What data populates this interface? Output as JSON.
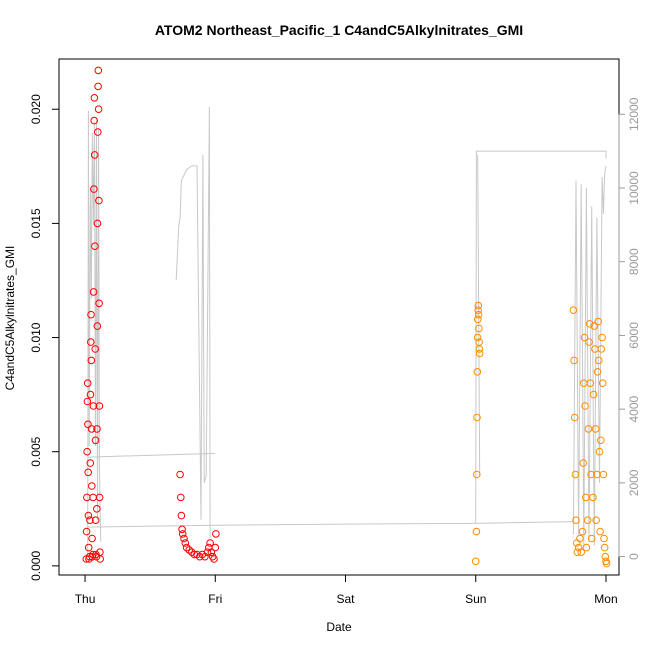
{
  "chart_data": {
    "type": "scatter",
    "title": "ATOM2 Northeast_Pacific_1 C4andC5Alkylnitrates_GMI",
    "xlabel": "Date",
    "ylabel": "C4andC5Alkylnitrates_GMI",
    "x_unit": "days since Thu 00:00 (day tick positions)",
    "xlim": [
      -0.2,
      4.1
    ],
    "ylim": [
      -0.0004,
      0.0222
    ],
    "y2lim": [
      -500,
      13500
    ],
    "x_ticks": [
      {
        "x": 0,
        "label": "Thu"
      },
      {
        "x": 1,
        "label": "Fri"
      },
      {
        "x": 2,
        "label": "Sat"
      },
      {
        "x": 3,
        "label": "Sun"
      },
      {
        "x": 4,
        "label": "Mon"
      }
    ],
    "y_ticks": [
      {
        "v": 0.0,
        "label": "0.000"
      },
      {
        "v": 0.005,
        "label": "0.005"
      },
      {
        "v": 0.01,
        "label": "0.010"
      },
      {
        "v": 0.015,
        "label": "0.015"
      },
      {
        "v": 0.02,
        "label": "0.020"
      }
    ],
    "y2_ticks": [
      {
        "v": 0,
        "label": "0"
      },
      {
        "v": 2000,
        "label": "2000"
      },
      {
        "v": 4000,
        "label": "4000"
      },
      {
        "v": 6000,
        "label": "6000"
      },
      {
        "v": 8000,
        "label": "8000"
      },
      {
        "v": 10000,
        "label": "10000"
      },
      {
        "v": 12000,
        "label": "12000"
      }
    ],
    "colors": {
      "series1": "#ff0000",
      "series2": "#ff8c00",
      "altitude": "#c8c8c8"
    },
    "series": [
      {
        "color": "#ff0000",
        "points": [
          [
            0.01,
            0.0003
          ],
          [
            0.012,
            0.0015
          ],
          [
            0.014,
            0.003
          ],
          [
            0.016,
            0.005
          ],
          [
            0.018,
            0.0072
          ],
          [
            0.02,
            0.008
          ],
          [
            0.022,
            0.0062
          ],
          [
            0.024,
            0.0041
          ],
          [
            0.026,
            0.0022
          ],
          [
            0.028,
            0.0008
          ],
          [
            0.03,
            0.0003
          ],
          [
            0.035,
            0.0004
          ],
          [
            0.037,
            0.002
          ],
          [
            0.04,
            0.0045
          ],
          [
            0.042,
            0.0075
          ],
          [
            0.044,
            0.0098
          ],
          [
            0.046,
            0.011
          ],
          [
            0.048,
            0.009
          ],
          [
            0.05,
            0.006
          ],
          [
            0.052,
            0.0035
          ],
          [
            0.054,
            0.0012
          ],
          [
            0.056,
            0.0004
          ],
          [
            0.06,
            0.0005
          ],
          [
            0.062,
            0.003
          ],
          [
            0.064,
            0.007
          ],
          [
            0.066,
            0.012
          ],
          [
            0.068,
            0.0165
          ],
          [
            0.07,
            0.0195
          ],
          [
            0.072,
            0.0205
          ],
          [
            0.074,
            0.018
          ],
          [
            0.076,
            0.014
          ],
          [
            0.078,
            0.0095
          ],
          [
            0.08,
            0.0055
          ],
          [
            0.082,
            0.002
          ],
          [
            0.084,
            0.0005
          ],
          [
            0.088,
            0.0004
          ],
          [
            0.09,
            0.0025
          ],
          [
            0.092,
            0.006
          ],
          [
            0.094,
            0.0105
          ],
          [
            0.096,
            0.015
          ],
          [
            0.098,
            0.019
          ],
          [
            0.1,
            0.021
          ],
          [
            0.102,
            0.0217
          ],
          [
            0.104,
            0.02
          ],
          [
            0.106,
            0.016
          ],
          [
            0.108,
            0.0115
          ],
          [
            0.11,
            0.007
          ],
          [
            0.112,
            0.003
          ],
          [
            0.114,
            0.0006
          ],
          [
            0.116,
            0.0003
          ],
          [
            0.73,
            0.004
          ],
          [
            0.735,
            0.003
          ],
          [
            0.74,
            0.0022
          ],
          [
            0.745,
            0.0016
          ],
          [
            0.75,
            0.0014
          ],
          [
            0.76,
            0.0012
          ],
          [
            0.77,
            0.001
          ],
          [
            0.78,
            0.0008
          ],
          [
            0.8,
            0.0007
          ],
          [
            0.82,
            0.0006
          ],
          [
            0.84,
            0.0005
          ],
          [
            0.86,
            0.0005
          ],
          [
            0.88,
            0.0004
          ],
          [
            0.9,
            0.0005
          ],
          [
            0.92,
            0.0004
          ],
          [
            0.94,
            0.0006
          ],
          [
            0.95,
            0.0008
          ],
          [
            0.96,
            0.001
          ],
          [
            0.97,
            0.0006
          ],
          [
            0.98,
            0.0004
          ],
          [
            0.99,
            0.0003
          ],
          [
            1.0,
            0.0008
          ],
          [
            1.005,
            0.0014
          ]
        ]
      },
      {
        "color": "#ff8c00",
        "points": [
          [
            3.0,
            0.0002
          ],
          [
            3.005,
            0.0015
          ],
          [
            3.008,
            0.004
          ],
          [
            3.01,
            0.0065
          ],
          [
            3.012,
            0.0085
          ],
          [
            3.014,
            0.01
          ],
          [
            3.016,
            0.0108
          ],
          [
            3.018,
            0.0112
          ],
          [
            3.02,
            0.0114
          ],
          [
            3.022,
            0.011
          ],
          [
            3.024,
            0.0104
          ],
          [
            3.026,
            0.0098
          ],
          [
            3.028,
            0.0095
          ],
          [
            3.03,
            0.0093
          ],
          [
            3.75,
            0.0112
          ],
          [
            3.755,
            0.009
          ],
          [
            3.76,
            0.0065
          ],
          [
            3.765,
            0.004
          ],
          [
            3.77,
            0.002
          ],
          [
            3.775,
            0.001
          ],
          [
            3.78,
            0.0006
          ],
          [
            3.79,
            0.0008
          ],
          [
            3.8,
            0.0012
          ],
          [
            3.81,
            0.0006
          ],
          [
            3.82,
            0.0015
          ],
          [
            3.825,
            0.0045
          ],
          [
            3.83,
            0.008
          ],
          [
            3.835,
            0.01
          ],
          [
            3.84,
            0.007
          ],
          [
            3.845,
            0.003
          ],
          [
            3.85,
            0.0008
          ],
          [
            3.86,
            0.002
          ],
          [
            3.865,
            0.006
          ],
          [
            3.87,
            0.0098
          ],
          [
            3.875,
            0.0106
          ],
          [
            3.88,
            0.008
          ],
          [
            3.885,
            0.004
          ],
          [
            3.89,
            0.0012
          ],
          [
            3.9,
            0.003
          ],
          [
            3.905,
            0.0075
          ],
          [
            3.91,
            0.0105
          ],
          [
            3.915,
            0.0095
          ],
          [
            3.92,
            0.006
          ],
          [
            3.925,
            0.002
          ],
          [
            3.93,
            0.004
          ],
          [
            3.935,
            0.0085
          ],
          [
            3.94,
            0.0107
          ],
          [
            3.945,
            0.009
          ],
          [
            3.95,
            0.005
          ],
          [
            3.955,
            0.0015
          ],
          [
            3.96,
            0.0055
          ],
          [
            3.965,
            0.0095
          ],
          [
            3.97,
            0.01
          ],
          [
            3.975,
            0.008
          ],
          [
            3.98,
            0.004
          ],
          [
            3.985,
            0.0012
          ],
          [
            3.99,
            0.0008
          ],
          [
            3.995,
            0.0004
          ],
          [
            4.0,
            0.0002
          ],
          [
            4.005,
            0.0001
          ]
        ]
      }
    ],
    "altitude_segments": [
      [
        [
          0.02,
          0
        ],
        [
          0.026,
          12100
        ],
        [
          0.032,
          3000
        ],
        [
          0.04,
          10000
        ],
        [
          0.048,
          7000
        ],
        [
          0.056,
          11500
        ],
        [
          0.064,
          9000
        ],
        [
          0.072,
          11800
        ],
        [
          0.08,
          3000
        ],
        [
          0.088,
          11900
        ],
        [
          0.096,
          1000
        ],
        [
          0.104,
          11600
        ],
        [
          0.11,
          2500
        ],
        [
          0.12,
          400
        ]
      ],
      [
        [
          0.7,
          7500
        ],
        [
          0.72,
          9000
        ],
        [
          0.73,
          9200
        ],
        [
          0.74,
          10200
        ],
        [
          0.78,
          10500
        ],
        [
          0.82,
          10600
        ],
        [
          0.86,
          10600
        ],
        [
          0.89,
          1000
        ],
        [
          0.905,
          10900
        ],
        [
          0.915,
          2000
        ],
        [
          0.93,
          2200
        ],
        [
          0.955,
          12200
        ],
        [
          0.96,
          500
        ]
      ],
      [
        [
          0.02,
          2700
        ],
        [
          1.0,
          2800
        ]
      ],
      [
        [
          0.02,
          800
        ],
        [
          1.0,
          850
        ],
        [
          2.0,
          880
        ],
        [
          3.0,
          900
        ],
        [
          3.75,
          950
        ]
      ],
      [
        [
          3.0,
          900
        ],
        [
          3.005,
          11000
        ],
        [
          3.06,
          11000
        ],
        [
          4.0,
          11000
        ],
        [
          4.0,
          10800
        ]
      ],
      [
        [
          3.015,
          10900
        ],
        [
          3.03,
          2200
        ]
      ],
      [
        [
          3.75,
          600
        ],
        [
          3.77,
          10200
        ],
        [
          3.79,
          600
        ],
        [
          3.81,
          10100
        ],
        [
          3.83,
          300
        ],
        [
          3.85,
          10000
        ],
        [
          3.87,
          400
        ],
        [
          3.89,
          9500
        ],
        [
          3.91,
          300
        ],
        [
          3.93,
          9200
        ],
        [
          3.95,
          2000
        ],
        [
          3.97,
          10300
        ],
        [
          3.98,
          9300
        ],
        [
          3.99,
          10400
        ],
        [
          4.0,
          10600
        ]
      ]
    ]
  }
}
